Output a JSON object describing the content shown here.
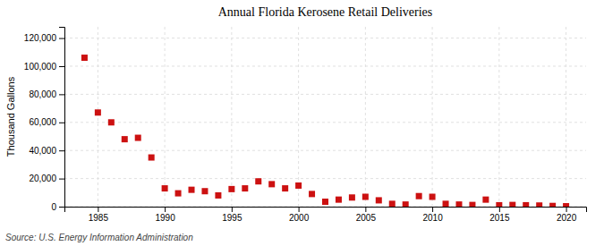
{
  "chart_data": {
    "type": "scatter",
    "title": "Annual Florida Kerosene Retail Deliveries",
    "ylabel": "Thousand Gallons",
    "source": "Source: U.S. Energy Information Administration",
    "color": "#cc1111",
    "marker": "square",
    "grid": true,
    "xlim": [
      1982.5,
      2021.5
    ],
    "ylim": [
      0,
      128000
    ],
    "xticks": [
      1985,
      1990,
      1995,
      2000,
      2005,
      2010,
      2015,
      2020
    ],
    "yticks": [
      0,
      {
        "value": 20000,
        "label": "20,000"
      },
      {
        "value": 40000,
        "label": "40,000"
      },
      {
        "value": 60000,
        "label": "60,000"
      },
      {
        "value": 80000,
        "label": "80,000"
      },
      {
        "value": 100000,
        "label": "100,000"
      },
      {
        "value": 120000,
        "label": "120,000"
      }
    ],
    "x": [
      1984,
      1985,
      1986,
      1987,
      1988,
      1989,
      1990,
      1991,
      1992,
      1993,
      1994,
      1995,
      1996,
      1997,
      1998,
      1999,
      2000,
      2001,
      2002,
      2003,
      2004,
      2005,
      2006,
      2007,
      2008,
      2009,
      2010,
      2011,
      2012,
      2013,
      2014,
      2015,
      2016,
      2017,
      2018,
      2019,
      2020
    ],
    "values": [
      106000,
      67000,
      60000,
      48000,
      49000,
      35000,
      13000,
      9500,
      12000,
      11000,
      8000,
      12500,
      13000,
      18000,
      16000,
      13000,
      15000,
      9000,
      3500,
      5000,
      6500,
      7000,
      4500,
      2000,
      1500,
      7500,
      7000,
      2000,
      1500,
      1200,
      5000,
      1000,
      1200,
      1000,
      800,
      500,
      300
    ]
  }
}
